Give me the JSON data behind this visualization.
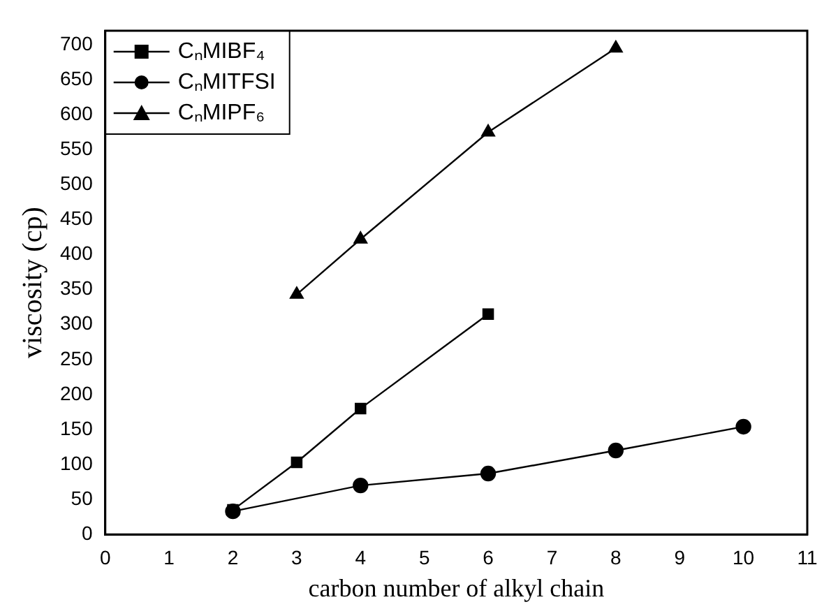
{
  "chart_data": {
    "type": "line",
    "xlabel": "carbon number of alkyl chain",
    "ylabel": "viscosity (cp)",
    "xlim": [
      0,
      11
    ],
    "xticks": [
      0,
      1,
      2,
      3,
      4,
      5,
      6,
      7,
      8,
      9,
      10,
      11
    ],
    "ylim": [
      0,
      720
    ],
    "yticks": [
      0,
      50,
      100,
      150,
      200,
      250,
      300,
      350,
      400,
      450,
      500,
      550,
      600,
      650,
      700
    ],
    "grid": false,
    "legend": "top left",
    "line_style": "solid",
    "series": [
      {
        "name": "CₙMIBF₄",
        "color": "#000000",
        "marker": "square",
        "x": [
          2,
          3,
          4,
          6
        ],
        "values": [
          35,
          103,
          180,
          315
        ]
      },
      {
        "name": "CₙMITFSI",
        "color": "#000000",
        "marker": "circle",
        "x": [
          2,
          4,
          6,
          8,
          10
        ],
        "values": [
          33,
          70,
          87,
          120,
          154
        ]
      },
      {
        "name": "CₙMIPF₆",
        "color": "#000000",
        "marker": "triangle",
        "x": [
          3,
          4,
          6,
          8
        ],
        "values": [
          343,
          422,
          575,
          695
        ]
      }
    ]
  }
}
